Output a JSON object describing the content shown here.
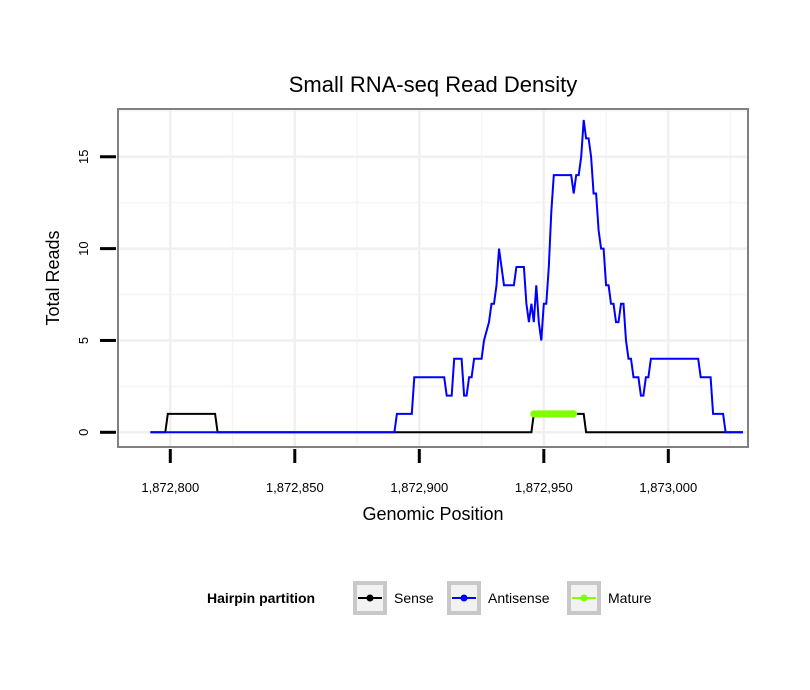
{
  "chart_data": {
    "type": "line",
    "title": "Small RNA-seq Read Density",
    "xlabel": "Genomic Position",
    "ylabel": "Total Reads",
    "xlim": [
      1872779,
      1873032
    ],
    "ylim": [
      -0.8,
      17.6
    ],
    "x_ticks": [
      1872800,
      1872850,
      1872900,
      1872950,
      1873000
    ],
    "x_tick_labels": [
      "1,872,800",
      "1,872,850",
      "1,872,900",
      "1,872,950",
      "1,873,000"
    ],
    "y_ticks": [
      0,
      5,
      10,
      15
    ],
    "y_tick_labels": [
      "0",
      "5",
      "10",
      "15"
    ],
    "grid": true,
    "legend": {
      "title": "Hairpin partition",
      "position": "bottom",
      "entries": [
        {
          "label": "Sense",
          "color": "#000000"
        },
        {
          "label": "Antisense",
          "color": "#0000ff"
        },
        {
          "label": "Mature",
          "color": "#7fff00"
        }
      ]
    },
    "series": [
      {
        "name": "Sense",
        "color": "#000000",
        "x": [
          1872792,
          1872798,
          1872799,
          1872818,
          1872819,
          1872945,
          1872946,
          1872966,
          1872967,
          1873030
        ],
        "y": [
          0,
          0,
          1,
          1,
          0,
          0,
          1,
          1,
          0,
          0
        ]
      },
      {
        "name": "Antisense",
        "color": "#0000ff",
        "x": [
          1872792,
          1872890,
          1872891,
          1872897,
          1872898,
          1872910,
          1872911,
          1872913,
          1872914,
          1872917,
          1872918,
          1872919,
          1872920,
          1872921,
          1872922,
          1872925,
          1872926,
          1872928,
          1872929,
          1872930,
          1872931,
          1872932,
          1872933,
          1872934,
          1872935,
          1872936,
          1872937,
          1872938,
          1872939,
          1872940,
          1872941,
          1872942,
          1872943,
          1872944,
          1872945,
          1872946,
          1872947,
          1872948,
          1872949,
          1872950,
          1872951,
          1872952,
          1872953,
          1872954,
          1872955,
          1872956,
          1872957,
          1872958,
          1872959,
          1872960,
          1872961,
          1872962,
          1872963,
          1872964,
          1872965,
          1872966,
          1872967,
          1872968,
          1872969,
          1872970,
          1872971,
          1872972,
          1872973,
          1872974,
          1872975,
          1872976,
          1872977,
          1872978,
          1872979,
          1872980,
          1872981,
          1872982,
          1872983,
          1872984,
          1872985,
          1872986,
          1872987,
          1872988,
          1872989,
          1872990,
          1872991,
          1872992,
          1872993,
          1872994,
          1872995,
          1872997,
          1873000,
          1873012,
          1873013,
          1873017,
          1873018,
          1873022,
          1873023,
          1873025,
          1873026,
          1873030
        ],
        "y": [
          0,
          0,
          1,
          1,
          3,
          3,
          2,
          2,
          4,
          4,
          2,
          2,
          3,
          3,
          4,
          4,
          5,
          6,
          7,
          7,
          8,
          10,
          9,
          8,
          8,
          8,
          8,
          8,
          9,
          9,
          9,
          9,
          7,
          6,
          7,
          6,
          8,
          6,
          5,
          7,
          7,
          9,
          12,
          14,
          14,
          14,
          14,
          14,
          14,
          14,
          14,
          13,
          14,
          14,
          15,
          17,
          16,
          16,
          15,
          13,
          13,
          11,
          10,
          10,
          8,
          8,
          7,
          7,
          6,
          6,
          7,
          7,
          5,
          4,
          4,
          3,
          3,
          3,
          2,
          2,
          3,
          3,
          4,
          4,
          4,
          4,
          4,
          4,
          3,
          3,
          1,
          1,
          0,
          0,
          0,
          0
        ]
      },
      {
        "name": "Mature",
        "color": "#7fff00",
        "x": [
          1872946,
          1872962
        ],
        "y": [
          1,
          1
        ]
      }
    ]
  }
}
